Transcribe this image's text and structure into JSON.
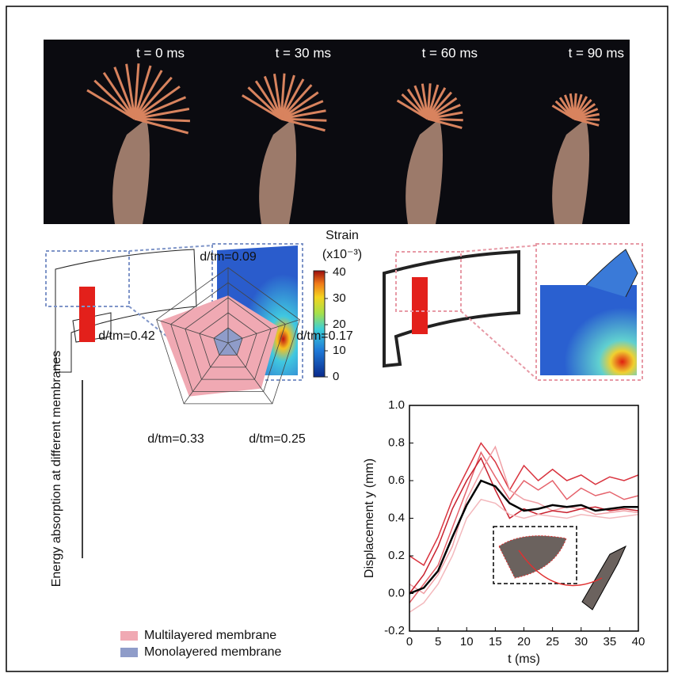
{
  "photo_labels": [
    "t = 0 ms",
    "t = 30 ms",
    "t = 60 ms",
    "t = 90 ms"
  ],
  "strain_colorbar": {
    "title": "Strain",
    "unit": "(x10⁻³)",
    "ticks": [
      0,
      10,
      20,
      30,
      40
    ],
    "lim": [
      0,
      40
    ]
  },
  "chart_data": [
    {
      "type": "radar",
      "ylabel": "Energy absorption at different membranes",
      "categories": [
        "d/tm=0.09",
        "d/tm=0.17",
        "d/tm=0.25",
        "d/tm=0.33",
        "d/tm=0.42"
      ],
      "rlim": [
        0,
        1
      ],
      "rticks": [
        0.2,
        0.4,
        0.6,
        0.8,
        1
      ],
      "series": [
        {
          "name": "Multilayered membrane",
          "color": "#f0a9b3",
          "values": [
            0.63,
            0.7,
            0.75,
            0.88,
            0.95
          ]
        },
        {
          "name": "Monolayered membrane",
          "color": "#8f9cc9",
          "values": [
            0.2,
            0.2,
            0.2,
            0.2,
            0.2
          ]
        }
      ]
    },
    {
      "type": "line",
      "xlabel": "t (ms)",
      "ylabel": "Displacement y (mm)",
      "x": [
        0,
        2.5,
        5,
        7.5,
        10,
        12.5,
        15,
        17.5,
        20,
        22.5,
        25,
        27.5,
        30,
        32.5,
        35,
        37.5,
        40
      ],
      "xlim": [
        0,
        40
      ],
      "xticks": [
        0,
        5,
        10,
        15,
        20,
        25,
        30,
        35,
        40
      ],
      "ylim": [
        -0.2,
        1.0
      ],
      "yticks": [
        -0.2,
        {
          "value": 0,
          "label": "0.0"
        },
        0.2,
        0.4,
        0.6,
        0.8,
        {
          "value": 1,
          "label": "1.0"
        }
      ],
      "series": [
        {
          "name": null,
          "color": "#d9343f",
          "values": [
            0.2,
            0.15,
            0.3,
            0.5,
            0.65,
            0.8,
            0.7,
            0.55,
            0.68,
            0.6,
            0.66,
            0.6,
            0.63,
            0.58,
            0.62,
            0.6,
            0.63
          ]
        },
        {
          "name": null,
          "color": "#e5636c",
          "values": [
            -0.05,
            0.05,
            0.15,
            0.35,
            0.55,
            0.75,
            0.62,
            0.5,
            0.6,
            0.55,
            0.6,
            0.5,
            0.56,
            0.52,
            0.54,
            0.5,
            0.52
          ]
        },
        {
          "name": null,
          "color": "#f0a0a6",
          "values": [
            0.05,
            0.0,
            0.1,
            0.25,
            0.5,
            0.65,
            0.78,
            0.55,
            0.5,
            0.48,
            0.44,
            0.46,
            0.45,
            0.42,
            0.43,
            0.44,
            0.43
          ]
        },
        {
          "name": null,
          "color": "#c8202d",
          "values": [
            0.0,
            0.1,
            0.25,
            0.45,
            0.6,
            0.72,
            0.55,
            0.4,
            0.45,
            0.42,
            0.44,
            0.43,
            0.45,
            0.46,
            0.44,
            0.45,
            0.44
          ]
        },
        {
          "name": null,
          "color": "#f3b8bc",
          "values": [
            -0.1,
            -0.05,
            0.05,
            0.2,
            0.4,
            0.5,
            0.48,
            0.42,
            0.4,
            0.42,
            0.41,
            0.4,
            0.42,
            0.41,
            0.4,
            0.41,
            0.42
          ]
        },
        {
          "name": null,
          "color": "#000000",
          "values": [
            0.0,
            0.03,
            0.12,
            0.3,
            0.47,
            0.6,
            0.57,
            0.48,
            0.44,
            0.45,
            0.47,
            0.46,
            0.47,
            0.44,
            0.45,
            0.46,
            0.46
          ]
        }
      ]
    }
  ]
}
